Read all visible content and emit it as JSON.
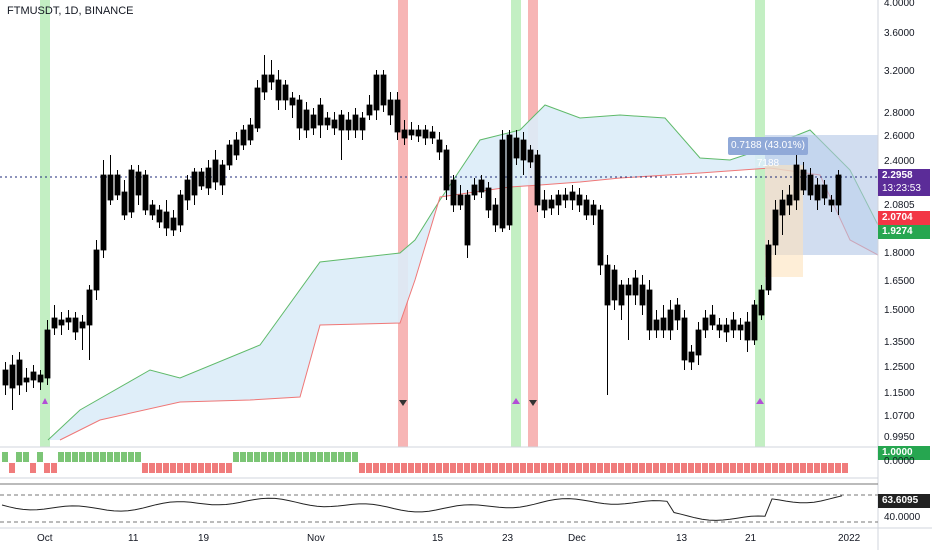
{
  "header": {
    "symbol_line": "FTMUSDT, 1D, BINANCE"
  },
  "measure_label": "0.7188 (43.01%) 7188",
  "price_axis": [
    "4.0000",
    "3.6000",
    "3.2000",
    "2.8000",
    "2.6000",
    "2.4000",
    "2.0805",
    "1.8000",
    "1.6500",
    "1.5000",
    "1.3500",
    "1.2500",
    "1.1500",
    "1.0700",
    "0.9950"
  ],
  "price_tags": {
    "last_price": "2.2958",
    "countdown": "13:23:53",
    "level_red": "2.0704",
    "level_green": "1.9274"
  },
  "indicator1_axis": {
    "top": "1.0000",
    "bottom": "0.0000"
  },
  "rsi_axis": {
    "value": "63.6095",
    "low": "40.0000"
  },
  "time_axis": [
    "Oct",
    "11",
    "19",
    "Nov",
    "15",
    "23",
    "Dec",
    "13",
    "21",
    "2022"
  ],
  "colors": {
    "up": "#ffffff",
    "down": "#000000",
    "green_band": "#a5e6a5",
    "red_band": "#f7a1a1",
    "cloud": "#dceefb",
    "tag_purple": "#5b2c98",
    "tag_red": "#f23645",
    "tag_green": "#26a650"
  }
}
